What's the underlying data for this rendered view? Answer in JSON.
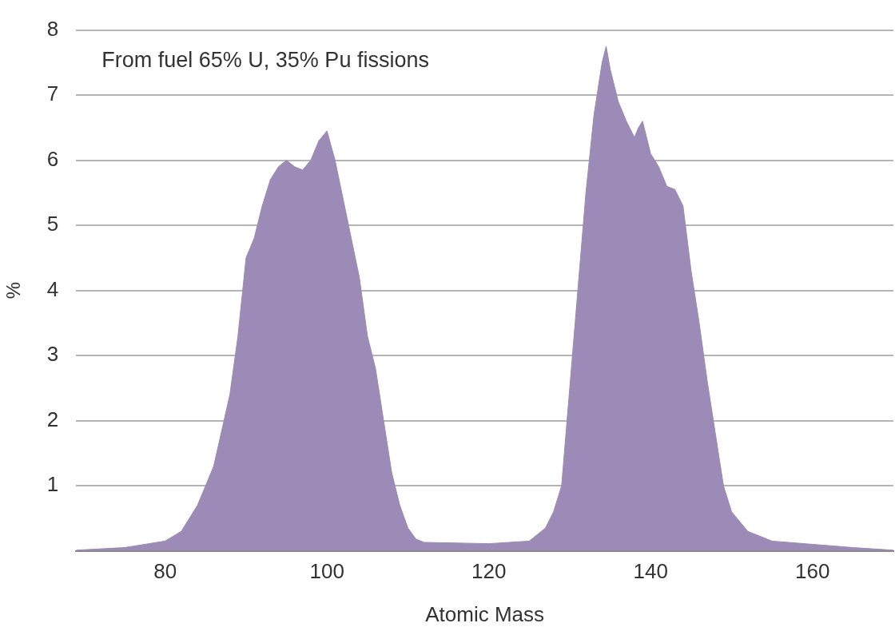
{
  "chart_data": {
    "type": "area",
    "xlabel": "Atomic Mass",
    "ylabel": "%",
    "annotations": [
      "From fuel 65% U, 35% Pu fissions"
    ],
    "xlim": [
      69,
      170
    ],
    "xticks": [
      80,
      100,
      120,
      140,
      160
    ],
    "ylim": [
      0,
      8
    ],
    "yticks": [
      {
        "value": 0,
        "label": null
      },
      1,
      2,
      3,
      4,
      5,
      6,
      7,
      8
    ],
    "grid": "y",
    "legend": false,
    "series": [
      {
        "color": "#9b8bb6",
        "x": [
          69,
          75,
          80,
          82,
          84,
          86,
          88,
          89,
          90,
          91,
          92,
          93,
          94,
          95,
          96,
          97,
          98,
          99,
          100,
          101,
          102,
          103,
          104,
          105,
          106,
          107,
          108,
          109,
          110,
          111,
          112,
          120,
          125,
          127,
          128,
          129,
          130,
          131,
          132,
          133,
          134,
          134.5,
          135,
          136,
          137,
          138,
          138.5,
          139,
          140,
          141,
          142,
          143,
          144,
          145,
          146,
          147,
          148,
          149,
          150,
          152,
          155,
          160,
          165,
          170
        ],
        "values": [
          0.01,
          0.05,
          0.15,
          0.3,
          0.7,
          1.3,
          2.4,
          3.3,
          4.5,
          4.8,
          5.3,
          5.7,
          5.9,
          6.0,
          5.9,
          5.85,
          6.0,
          6.3,
          6.45,
          6.0,
          5.4,
          4.8,
          4.2,
          3.3,
          2.8,
          2.0,
          1.2,
          0.7,
          0.35,
          0.18,
          0.13,
          0.11,
          0.15,
          0.35,
          0.6,
          1.0,
          2.5,
          4.0,
          5.5,
          6.7,
          7.5,
          7.75,
          7.4,
          6.9,
          6.6,
          6.35,
          6.5,
          6.6,
          6.1,
          5.9,
          5.6,
          5.55,
          5.3,
          4.3,
          3.5,
          2.6,
          1.8,
          1.0,
          0.6,
          0.3,
          0.15,
          0.1,
          0.05,
          0.01
        ]
      }
    ]
  }
}
